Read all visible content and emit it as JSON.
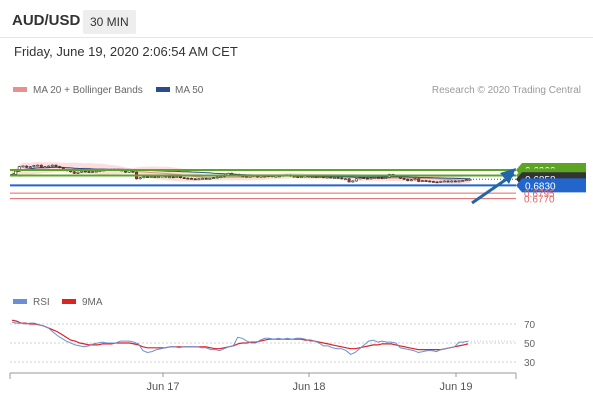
{
  "header": {
    "pair": "AUD/USD",
    "timeframe": "30 MIN",
    "datetime": "Friday, June 19, 2020 2:06:54 AM CET"
  },
  "legend": {
    "ma20": "MA 20 + Bollinger Bands",
    "ma50": "MA 50",
    "credit": "Research © 2020 Trading Central",
    "rsi": "RSI",
    "rsi_ma": "9MA"
  },
  "colors": {
    "candle_up": "#ffffff",
    "candle_down": "#cc2222",
    "bollinger_fill": "#fbdedd",
    "ma20": "#e88f8f",
    "ma50": "#2b4c8c",
    "resistance": "#5da423",
    "pivot": "#2266cc",
    "support": "#e06666",
    "current": "#333333",
    "arrow": "#2266aa",
    "rsi": "#6b8fd6",
    "rsi_ma": "#dd2222"
  },
  "chart_data": [
    {
      "type": "candlestick",
      "title": "AUD/USD",
      "ylim": [
        0.676,
        0.694
      ],
      "x_ticks": [
        "Jun 17",
        "Jun 18",
        "Jun 19"
      ],
      "close": [
        0.688,
        0.6895,
        0.6915,
        0.6918,
        0.6912,
        0.6915,
        0.692,
        0.6922,
        0.6912,
        0.6915,
        0.6918,
        0.6922,
        0.6916,
        0.6911,
        0.6902,
        0.6897,
        0.6892,
        0.6885,
        0.689,
        0.6895,
        0.6893,
        0.689,
        0.6893,
        0.6895,
        0.6898,
        0.69,
        0.6902,
        0.69,
        0.6903,
        0.69,
        0.6897,
        0.689,
        0.6898,
        0.689,
        0.686,
        0.6865,
        0.687,
        0.6868,
        0.687,
        0.6869,
        0.687,
        0.6872,
        0.6868,
        0.6869,
        0.6867,
        0.687,
        0.6865,
        0.6863,
        0.6862,
        0.686,
        0.6858,
        0.686,
        0.6862,
        0.686,
        0.6862,
        0.6865,
        0.6868,
        0.687,
        0.6878,
        0.6885,
        0.6875,
        0.688,
        0.6873,
        0.6872,
        0.6868,
        0.6872,
        0.6876,
        0.6868,
        0.6872,
        0.687,
        0.6874,
        0.687,
        0.6872,
        0.6873,
        0.6876,
        0.6878,
        0.6872,
        0.687,
        0.6868,
        0.687,
        0.6872,
        0.6869,
        0.687,
        0.6868,
        0.687,
        0.6866,
        0.6868,
        0.6866,
        0.6866,
        0.6864,
        0.686,
        0.686,
        0.6846,
        0.685,
        0.686,
        0.6865,
        0.6863,
        0.686,
        0.6864,
        0.6866,
        0.6865,
        0.6864,
        0.6866,
        0.688,
        0.6872,
        0.6875,
        0.6862,
        0.6858,
        0.6852,
        0.6856,
        0.686,
        0.6848,
        0.6852,
        0.685,
        0.6848,
        0.6846,
        0.6845,
        0.6848,
        0.685,
        0.6846,
        0.685,
        0.6848,
        0.685,
        0.6852,
        0.6856,
        0.6858
      ]
    },
    {
      "type": "line",
      "title": "RSI",
      "ylim": [
        20,
        80
      ],
      "y_ticks": [
        70,
        50,
        30
      ],
      "series": [
        {
          "name": "RSI",
          "values": [
            72,
            71,
            71,
            70,
            71,
            71,
            69,
            68,
            66,
            62,
            58,
            55,
            52,
            50,
            48,
            47,
            46,
            47,
            49,
            50,
            51,
            50,
            50,
            50,
            52,
            52,
            52,
            51,
            49,
            42,
            40,
            41,
            43,
            44,
            45,
            46,
            46,
            45,
            46,
            46,
            46,
            46,
            45,
            45,
            43,
            43,
            42,
            44,
            46,
            47,
            56,
            55,
            52,
            50,
            50,
            53,
            55,
            55,
            54,
            55,
            54,
            55,
            54,
            55,
            55,
            54,
            52,
            52,
            50,
            47,
            47,
            45,
            44,
            44,
            42,
            38,
            40,
            44,
            48,
            52,
            53,
            51,
            52,
            51,
            51,
            50,
            45,
            44,
            43,
            42,
            40,
            41,
            42,
            42,
            41,
            43,
            44,
            45,
            46,
            51,
            51,
            52
          ]
        },
        {
          "name": "9MA",
          "values": [
            74,
            73,
            71,
            71,
            70,
            70,
            69,
            68,
            66,
            64,
            62,
            59,
            56,
            53,
            52,
            50,
            49,
            48,
            48,
            48,
            49,
            49,
            49,
            50,
            50,
            50,
            50,
            49,
            48,
            46,
            45,
            45,
            45,
            45,
            45,
            46,
            46,
            46,
            46,
            46,
            46,
            46,
            46,
            46,
            45,
            44,
            44,
            45,
            46,
            47,
            49,
            50,
            50,
            51,
            51,
            52,
            53,
            54,
            54,
            54,
            54,
            54,
            54,
            54,
            54,
            53,
            53,
            52,
            51,
            50,
            49,
            48,
            47,
            46,
            45,
            44,
            44,
            45,
            46,
            47,
            48,
            48,
            49,
            49,
            49,
            48,
            47,
            46,
            45,
            44,
            43,
            43,
            43,
            43,
            43,
            43,
            44,
            45,
            46,
            47,
            48,
            49
          ]
        }
      ]
    }
  ],
  "levels": [
    {
      "label": "0.6900",
      "value": 0.69,
      "kind": "resistance"
    },
    {
      "label": "0.6875",
      "value": 0.6875,
      "kind": "resistance"
    },
    {
      "label": "0.6858",
      "value": 0.6858,
      "kind": "current"
    },
    {
      "label": "0.6830",
      "value": 0.683,
      "kind": "pivot"
    },
    {
      "label": "0.6795",
      "value": 0.6795,
      "kind": "support"
    },
    {
      "label": "0.6770",
      "value": 0.677,
      "kind": "support"
    }
  ]
}
